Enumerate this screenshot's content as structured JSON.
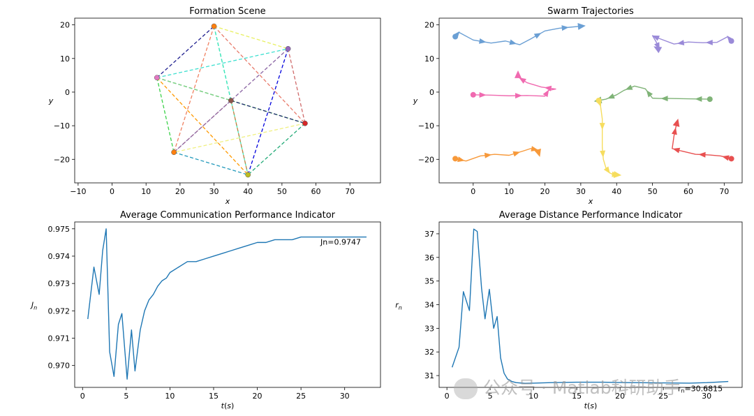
{
  "chart_data": [
    {
      "id": "formation",
      "type": "scatter",
      "title": "Formation Scene",
      "xlabel": "x",
      "ylabel": "y",
      "xlim": [
        -11,
        79
      ],
      "ylim": [
        -27,
        22
      ],
      "xticks": [
        -10,
        0,
        10,
        20,
        30,
        40,
        50,
        60,
        70
      ],
      "yticks": [
        -20,
        -10,
        0,
        10,
        20
      ],
      "nodes": [
        {
          "x": 30,
          "y": 19.6,
          "color": "#ff7f0e"
        },
        {
          "x": 51.8,
          "y": 12.9,
          "color": "#9467bd"
        },
        {
          "x": 13.2,
          "y": 4.3,
          "color": "#e377c2"
        },
        {
          "x": 35,
          "y": -2.5,
          "color": "#8c564b"
        },
        {
          "x": 56.8,
          "y": -9.3,
          "color": "#d62728"
        },
        {
          "x": 18.2,
          "y": -17.9,
          "color": "#ff7f0e"
        },
        {
          "x": 40,
          "y": -24.6,
          "color": "#bcbd22"
        }
      ],
      "edges": [
        {
          "from": 2,
          "to": 0,
          "color": "#1f1f8f"
        },
        {
          "from": 2,
          "to": 1,
          "color": "#3fe0d0"
        },
        {
          "from": 2,
          "to": 3,
          "color": "#2e8b7a"
        },
        {
          "from": 2,
          "to": 4,
          "color": "#7fd67f"
        },
        {
          "from": 2,
          "to": 5,
          "color": "#3cd24a"
        },
        {
          "from": 2,
          "to": 6,
          "color": "#ff9900"
        },
        {
          "from": 0,
          "to": 1,
          "color": "#e8f060"
        },
        {
          "from": 0,
          "to": 3,
          "color": "#2ad6c8"
        },
        {
          "from": 0,
          "to": 4,
          "color": "#e87a6a"
        },
        {
          "from": 0,
          "to": 5,
          "color": "#f08060"
        },
        {
          "from": 0,
          "to": 6,
          "color": "#40e8b8"
        },
        {
          "from": 1,
          "to": 3,
          "color": "#c06070"
        },
        {
          "from": 1,
          "to": 4,
          "color": "#d06a6a"
        },
        {
          "from": 1,
          "to": 5,
          "color": "#8a6fb0"
        },
        {
          "from": 1,
          "to": 6,
          "color": "#0000dd"
        },
        {
          "from": 3,
          "to": 4,
          "color": "#1a2a6a"
        },
        {
          "from": 3,
          "to": 5,
          "color": "#9a6a9a"
        },
        {
          "from": 3,
          "to": 6,
          "color": "#c08040"
        },
        {
          "from": 4,
          "to": 5,
          "color": "#f0f080"
        },
        {
          "from": 4,
          "to": 6,
          "color": "#22aa77"
        },
        {
          "from": 5,
          "to": 6,
          "color": "#2299bb"
        }
      ]
    },
    {
      "id": "trajectories",
      "type": "line",
      "title": "Swarm Trajectories",
      "xlabel": "x",
      "ylabel": "y",
      "xlim": [
        -9.5,
        75
      ],
      "ylim": [
        -27,
        22
      ],
      "xticks": [
        0,
        10,
        20,
        30,
        40,
        50,
        60,
        70
      ],
      "yticks": [
        -20,
        -10,
        0,
        10,
        20
      ],
      "series": [
        {
          "name": "blue",
          "color": "#6a9fd4",
          "x": [
            -5,
            -4,
            0,
            5,
            9,
            13,
            16,
            20,
            24,
            27,
            30
          ],
          "y": [
            16.5,
            17.8,
            15.5,
            14.6,
            15.2,
            14.1,
            15.8,
            18.2,
            19.0,
            19.3,
            19.6
          ]
        },
        {
          "name": "purple",
          "color": "#9a8ad8",
          "x": [
            72,
            71,
            68,
            64,
            60,
            56,
            52,
            50,
            51,
            52,
            51.5
          ],
          "y": [
            15.2,
            16.5,
            14.8,
            14.7,
            14.9,
            14.3,
            15.9,
            16.8,
            15.0,
            12.6,
            12.9
          ]
        },
        {
          "name": "pink",
          "color": "#f06ab0",
          "x": [
            0,
            5,
            10,
            15,
            20,
            21,
            23,
            19,
            15,
            12.5,
            12.5
          ],
          "y": [
            -0.8,
            -0.9,
            -1.1,
            -1.0,
            -1.2,
            0.5,
            0.9,
            1.5,
            2.8,
            4.5,
            5.0
          ]
        },
        {
          "name": "green",
          "color": "#7fb377",
          "x": [
            66,
            60,
            55,
            52,
            50,
            48,
            45,
            42,
            40,
            37,
            35
          ],
          "y": [
            -2.1,
            -2.0,
            -1.9,
            -1.9,
            -1.8,
            1.0,
            1.8,
            0.5,
            -0.8,
            -2.1,
            -2.5
          ]
        },
        {
          "name": "yellow",
          "color": "#f6dd5e",
          "x": [
            35,
            35.5,
            36,
            36,
            36,
            36.3,
            37,
            38,
            39,
            40
          ],
          "y": [
            -2.5,
            -4.0,
            -8.0,
            -12.0,
            -16.5,
            -20.0,
            -22.5,
            -24.0,
            -24.5,
            -24.6
          ]
        },
        {
          "name": "red",
          "color": "#e85050",
          "x": [
            72,
            69,
            66,
            62,
            58,
            55.5,
            56,
            56.5,
            56.8
          ],
          "y": [
            -19.8,
            -19.0,
            -18.7,
            -18.5,
            -17.5,
            -16.8,
            -13.0,
            -10.5,
            -9.3
          ]
        },
        {
          "name": "orange",
          "color": "#f7993a",
          "x": [
            -5,
            -2,
            2,
            6,
            10,
            14,
            16,
            18,
            18.2
          ],
          "y": [
            -19.8,
            -20.5,
            -19.0,
            -18.5,
            -18.8,
            -17.5,
            -16.8,
            -17.2,
            -17.9
          ]
        }
      ]
    },
    {
      "id": "communication",
      "type": "line",
      "title": "Average Communication Performance Indicator",
      "xlabel": "t(s)",
      "ylabel": "J_n",
      "xlim": [
        -0.9,
        34.1
      ],
      "ylim": [
        0.9692,
        0.97525
      ],
      "xticks": [
        0,
        5,
        10,
        15,
        20,
        25,
        30
      ],
      "yticks": [
        0.97,
        0.971,
        0.972,
        0.973,
        0.974,
        0.975
      ],
      "annotation": "Jn=0.9747",
      "series": [
        {
          "name": "Jn",
          "color": "#1f77b4",
          "x": [
            0.6,
            1.3,
            1.9,
            2.3,
            2.7,
            3.1,
            3.6,
            4.1,
            4.5,
            5.1,
            5.6,
            6.0,
            6.6,
            7.1,
            7.6,
            8.1,
            8.6,
            9.1,
            9.6,
            10,
            11,
            12,
            13,
            14,
            15,
            16,
            17,
            18,
            19,
            20,
            21,
            22,
            23,
            24,
            25,
            26,
            27,
            28,
            29,
            30,
            31,
            32.5
          ],
          "y": [
            0.9717,
            0.9736,
            0.9726,
            0.9742,
            0.975,
            0.9705,
            0.9696,
            0.9715,
            0.9719,
            0.9695,
            0.9713,
            0.9698,
            0.9713,
            0.972,
            0.9724,
            0.9726,
            0.9729,
            0.9731,
            0.9732,
            0.9734,
            0.9736,
            0.9738,
            0.9738,
            0.9739,
            0.974,
            0.9741,
            0.9742,
            0.9743,
            0.9744,
            0.9745,
            0.9745,
            0.9746,
            0.9746,
            0.9746,
            0.9747,
            0.9747,
            0.9747,
            0.9747,
            0.9747,
            0.9747,
            0.9747,
            0.9747
          ]
        }
      ]
    },
    {
      "id": "distance",
      "type": "line",
      "title": "Average Distance Performance Indicator",
      "xlabel": "t(s)",
      "ylabel": "r_n",
      "xlim": [
        -0.9,
        34.1
      ],
      "ylim": [
        30.5,
        37.5
      ],
      "xticks": [
        0,
        5,
        10,
        15,
        20,
        25,
        30
      ],
      "yticks": [
        31,
        32,
        33,
        34,
        35,
        36,
        37
      ],
      "annotation": "rn=30.6815",
      "series": [
        {
          "name": "rn",
          "color": "#1f77b4",
          "x": [
            0.6,
            1.4,
            1.9,
            2.6,
            3.1,
            3.5,
            4.0,
            4.4,
            4.9,
            5.4,
            5.8,
            6.2,
            6.6,
            7.0,
            7.5,
            8.0,
            9.0,
            10,
            12,
            15,
            18,
            21,
            25,
            28,
            30,
            32.5
          ],
          "y": [
            31.35,
            32.2,
            34.55,
            33.75,
            37.2,
            37.1,
            34.7,
            33.4,
            34.65,
            33.0,
            33.5,
            31.75,
            31.1,
            30.85,
            30.75,
            30.7,
            30.67,
            30.68,
            30.7,
            30.72,
            30.72,
            30.7,
            30.69,
            30.68,
            30.7,
            30.75
          ]
        }
      ]
    }
  ],
  "watermark": {
    "text": "公众号 · Matlab科研助手"
  }
}
